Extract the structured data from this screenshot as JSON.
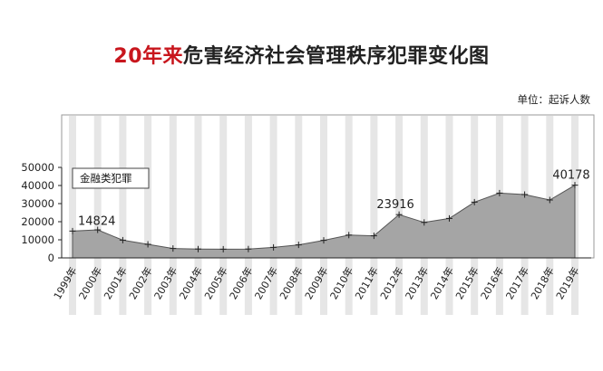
{
  "title": {
    "highlight": "20年来",
    "rest": "危害经济社会管理秩序犯罪变化图"
  },
  "unit_label": "单位：起诉人数",
  "colors": {
    "title_accent": "#c8161d",
    "area_fill": "#a5a5a5",
    "stripe": "#e6e6e6",
    "line": "#555555"
  },
  "chart_data": {
    "type": "area",
    "categories": [
      "1999年",
      "2000年",
      "2001年",
      "2002年",
      "2003年",
      "2004年",
      "2005年",
      "2006年",
      "2007年",
      "2008年",
      "2009年",
      "2010年",
      "2011年",
      "2012年",
      "2013年",
      "2014年",
      "2015年",
      "2016年",
      "2017年",
      "2018年",
      "2019年"
    ],
    "series": [
      {
        "name": "金融类犯罪",
        "values": [
          14824,
          15500,
          9800,
          7500,
          5200,
          4900,
          4800,
          4900,
          5800,
          7200,
          9700,
          12600,
          12200,
          23916,
          19600,
          21800,
          30800,
          35800,
          35000,
          32000,
          40178
        ]
      }
    ],
    "data_labels": [
      {
        "index": 0,
        "text": "14824"
      },
      {
        "index": 13,
        "text": "23916"
      },
      {
        "index": 20,
        "text": "40178"
      }
    ],
    "yticks": [
      "0",
      "10000",
      "20000",
      "30000",
      "40000",
      "50000"
    ],
    "ylim": [
      0,
      50000
    ],
    "grid": false,
    "legend": "top-left"
  }
}
